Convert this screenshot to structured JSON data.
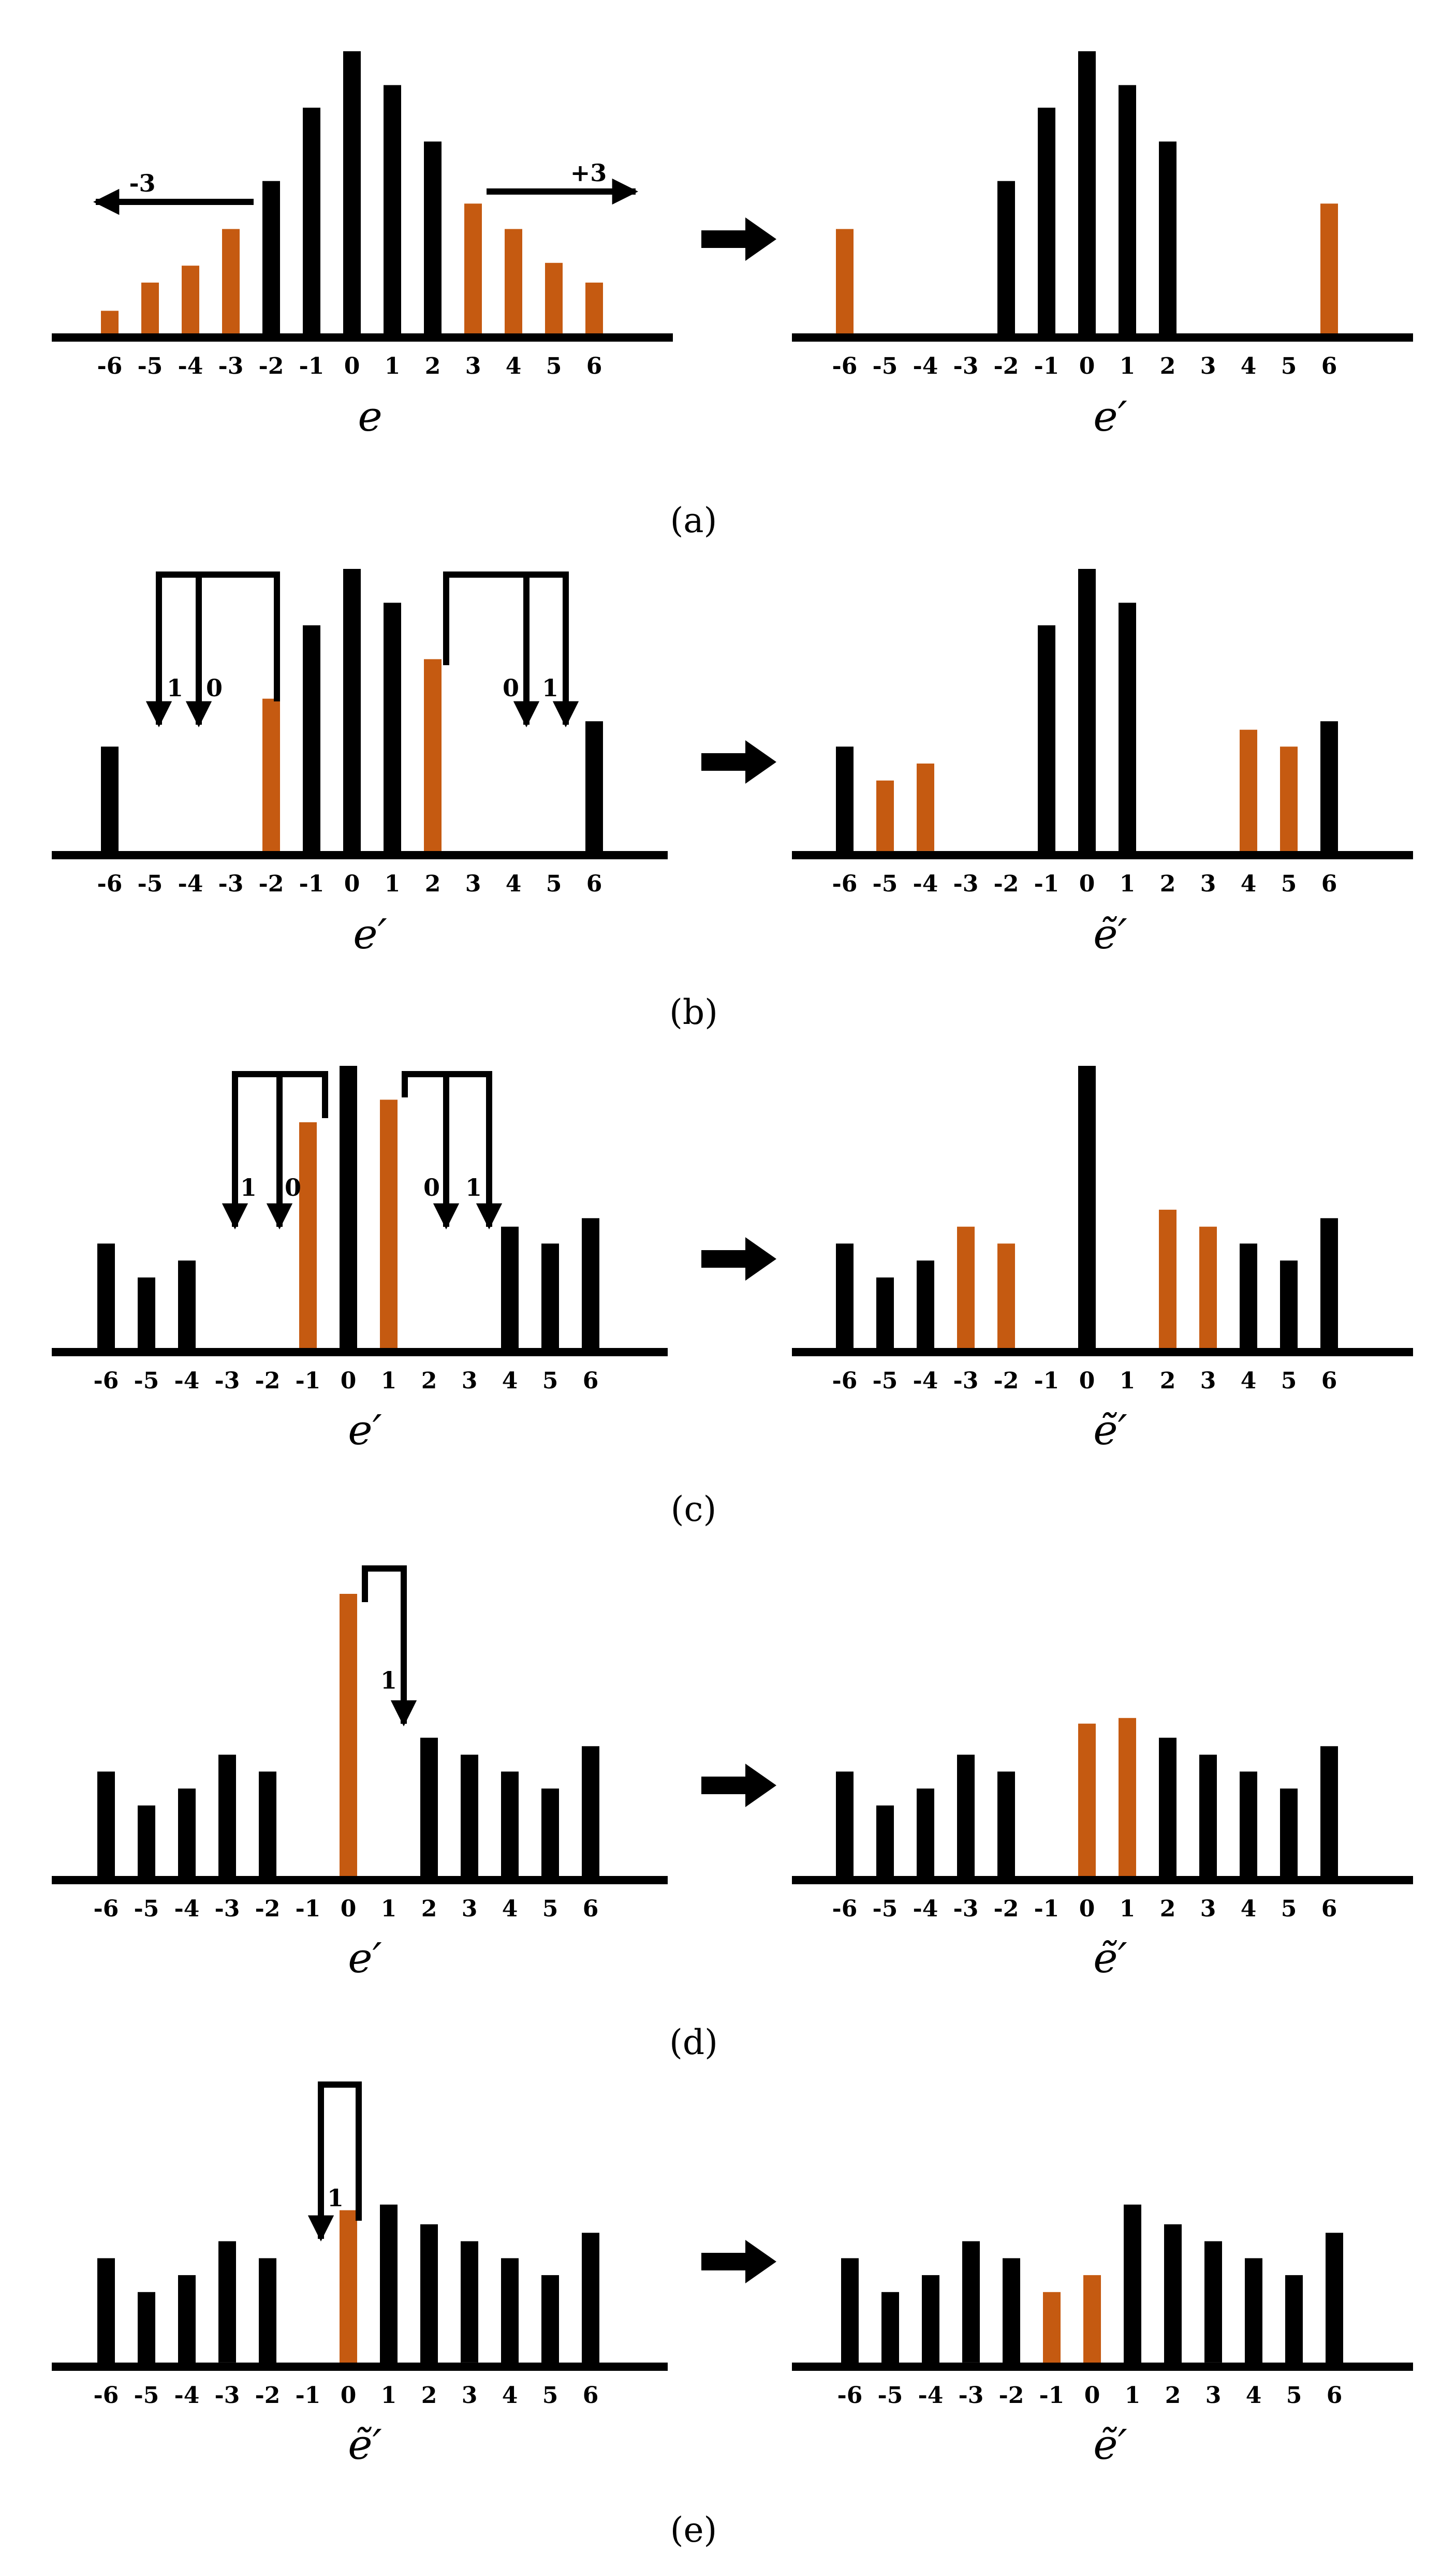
{
  "colors": {
    "normal": "#000000",
    "highlight": "#C55A11"
  },
  "tick_labels": [
    "-6",
    "-5",
    "-4",
    "-3",
    "-2",
    "-1",
    "0",
    "1",
    "2",
    "3",
    "4",
    "5",
    "6"
  ],
  "panels": [
    {
      "id": "a",
      "caption": "(a)",
      "left": {
        "label": "e",
        "bars": [
          {
            "bin": -6,
            "value": 0.08,
            "hl": true
          },
          {
            "bin": -5,
            "value": 0.18,
            "hl": true
          },
          {
            "bin": -4,
            "value": 0.24,
            "hl": true
          },
          {
            "bin": -3,
            "value": 0.37,
            "hl": true
          },
          {
            "bin": -2,
            "value": 0.54,
            "hl": false
          },
          {
            "bin": -1,
            "value": 0.8,
            "hl": false
          },
          {
            "bin": 0,
            "value": 1.0,
            "hl": false
          },
          {
            "bin": 1,
            "value": 0.88,
            "hl": false
          },
          {
            "bin": 2,
            "value": 0.68,
            "hl": false
          },
          {
            "bin": 3,
            "value": 0.46,
            "hl": true
          },
          {
            "bin": 4,
            "value": 0.37,
            "hl": true
          },
          {
            "bin": 5,
            "value": 0.25,
            "hl": true
          },
          {
            "bin": 6,
            "value": 0.18,
            "hl": true
          }
        ],
        "shift_left_label": "-3",
        "shift_right_label": "+3"
      },
      "right": {
        "label": "e′",
        "bars": [
          {
            "bin": -6,
            "value": 0.37,
            "hl": true
          },
          {
            "bin": -2,
            "value": 0.54,
            "hl": false
          },
          {
            "bin": -1,
            "value": 0.8,
            "hl": false
          },
          {
            "bin": 0,
            "value": 1.0,
            "hl": false
          },
          {
            "bin": 1,
            "value": 0.88,
            "hl": false
          },
          {
            "bin": 2,
            "value": 0.68,
            "hl": false
          },
          {
            "bin": 6,
            "value": 0.46,
            "hl": true
          }
        ]
      }
    },
    {
      "id": "b",
      "caption": "(b)",
      "left": {
        "label": "e′",
        "bars": [
          {
            "bin": -6,
            "value": 0.37,
            "hl": false
          },
          {
            "bin": -2,
            "value": 0.54,
            "hl": true
          },
          {
            "bin": -1,
            "value": 0.8,
            "hl": false
          },
          {
            "bin": 0,
            "value": 1.0,
            "hl": false
          },
          {
            "bin": 1,
            "value": 0.88,
            "hl": false
          },
          {
            "bin": 2,
            "value": 0.68,
            "hl": true
          },
          {
            "bin": 6,
            "value": 0.46,
            "hl": false
          }
        ],
        "split_labels": [
          "1",
          "0",
          "0",
          "1"
        ]
      },
      "right": {
        "label": "ẽ′",
        "bars": [
          {
            "bin": -6,
            "value": 0.37,
            "hl": false
          },
          {
            "bin": -5,
            "value": 0.25,
            "hl": true
          },
          {
            "bin": -4,
            "value": 0.31,
            "hl": true
          },
          {
            "bin": -1,
            "value": 0.8,
            "hl": false
          },
          {
            "bin": 0,
            "value": 1.0,
            "hl": false
          },
          {
            "bin": 1,
            "value": 0.88,
            "hl": false
          },
          {
            "bin": 4,
            "value": 0.43,
            "hl": true
          },
          {
            "bin": 5,
            "value": 0.37,
            "hl": true
          },
          {
            "bin": 6,
            "value": 0.46,
            "hl": false
          }
        ]
      }
    },
    {
      "id": "c",
      "caption": "(c)",
      "left": {
        "label": "e′",
        "bars": [
          {
            "bin": -6,
            "value": 0.37,
            "hl": false
          },
          {
            "bin": -5,
            "value": 0.25,
            "hl": false
          },
          {
            "bin": -4,
            "value": 0.31,
            "hl": false
          },
          {
            "bin": -1,
            "value": 0.8,
            "hl": true
          },
          {
            "bin": 0,
            "value": 1.0,
            "hl": false
          },
          {
            "bin": 1,
            "value": 0.88,
            "hl": true
          },
          {
            "bin": 4,
            "value": 0.43,
            "hl": false
          },
          {
            "bin": 5,
            "value": 0.37,
            "hl": false
          },
          {
            "bin": 6,
            "value": 0.46,
            "hl": false
          }
        ],
        "split_labels": [
          "1",
          "0",
          "0",
          "1"
        ]
      },
      "right": {
        "label": "ẽ′",
        "bars": [
          {
            "bin": -6,
            "value": 0.37,
            "hl": false
          },
          {
            "bin": -5,
            "value": 0.25,
            "hl": false
          },
          {
            "bin": -4,
            "value": 0.31,
            "hl": false
          },
          {
            "bin": -3,
            "value": 0.43,
            "hl": true
          },
          {
            "bin": -2,
            "value": 0.37,
            "hl": true
          },
          {
            "bin": 0,
            "value": 1.0,
            "hl": false
          },
          {
            "bin": 2,
            "value": 0.49,
            "hl": true
          },
          {
            "bin": 3,
            "value": 0.43,
            "hl": true
          },
          {
            "bin": 4,
            "value": 0.37,
            "hl": false
          },
          {
            "bin": 5,
            "value": 0.31,
            "hl": false
          },
          {
            "bin": 6,
            "value": 0.46,
            "hl": false
          }
        ]
      }
    },
    {
      "id": "d",
      "caption": "(d)",
      "left": {
        "label": "e′",
        "bars": [
          {
            "bin": -6,
            "value": 0.37,
            "hl": false
          },
          {
            "bin": -5,
            "value": 0.25,
            "hl": false
          },
          {
            "bin": -4,
            "value": 0.31,
            "hl": false
          },
          {
            "bin": -3,
            "value": 0.43,
            "hl": false
          },
          {
            "bin": -2,
            "value": 0.37,
            "hl": false
          },
          {
            "bin": 0,
            "value": 1.0,
            "hl": true
          },
          {
            "bin": 2,
            "value": 0.49,
            "hl": false
          },
          {
            "bin": 3,
            "value": 0.43,
            "hl": false
          },
          {
            "bin": 4,
            "value": 0.37,
            "hl": false
          },
          {
            "bin": 5,
            "value": 0.31,
            "hl": false
          },
          {
            "bin": 6,
            "value": 0.46,
            "hl": false
          }
        ],
        "split_labels": [
          "1"
        ]
      },
      "right": {
        "label": "ẽ′",
        "bars": [
          {
            "bin": -6,
            "value": 0.37,
            "hl": false
          },
          {
            "bin": -5,
            "value": 0.25,
            "hl": false
          },
          {
            "bin": -4,
            "value": 0.31,
            "hl": false
          },
          {
            "bin": -3,
            "value": 0.43,
            "hl": false
          },
          {
            "bin": -2,
            "value": 0.37,
            "hl": false
          },
          {
            "bin": 0,
            "value": 0.54,
            "hl": true
          },
          {
            "bin": 1,
            "value": 0.56,
            "hl": true
          },
          {
            "bin": 2,
            "value": 0.49,
            "hl": false
          },
          {
            "bin": 3,
            "value": 0.43,
            "hl": false
          },
          {
            "bin": 4,
            "value": 0.37,
            "hl": false
          },
          {
            "bin": 5,
            "value": 0.31,
            "hl": false
          },
          {
            "bin": 6,
            "value": 0.46,
            "hl": false
          }
        ]
      }
    },
    {
      "id": "e",
      "caption": "(e)",
      "left": {
        "label": "ẽ′",
        "bars": [
          {
            "bin": -6,
            "value": 0.37,
            "hl": false
          },
          {
            "bin": -5,
            "value": 0.25,
            "hl": false
          },
          {
            "bin": -4,
            "value": 0.31,
            "hl": false
          },
          {
            "bin": -3,
            "value": 0.43,
            "hl": false
          },
          {
            "bin": -2,
            "value": 0.37,
            "hl": false
          },
          {
            "bin": 0,
            "value": 0.54,
            "hl": true
          },
          {
            "bin": 1,
            "value": 0.56,
            "hl": false
          },
          {
            "bin": 2,
            "value": 0.49,
            "hl": false
          },
          {
            "bin": 3,
            "value": 0.43,
            "hl": false
          },
          {
            "bin": 4,
            "value": 0.37,
            "hl": false
          },
          {
            "bin": 5,
            "value": 0.31,
            "hl": false
          },
          {
            "bin": 6,
            "value": 0.46,
            "hl": false
          }
        ],
        "split_labels": [
          "1"
        ]
      },
      "right": {
        "label": "ẽ′",
        "bars": [
          {
            "bin": -6,
            "value": 0.37,
            "hl": false
          },
          {
            "bin": -5,
            "value": 0.25,
            "hl": false
          },
          {
            "bin": -4,
            "value": 0.31,
            "hl": false
          },
          {
            "bin": -3,
            "value": 0.43,
            "hl": false
          },
          {
            "bin": -2,
            "value": 0.37,
            "hl": false
          },
          {
            "bin": -1,
            "value": 0.25,
            "hl": true
          },
          {
            "bin": 0,
            "value": 0.31,
            "hl": true
          },
          {
            "bin": 1,
            "value": 0.56,
            "hl": false
          },
          {
            "bin": 2,
            "value": 0.49,
            "hl": false
          },
          {
            "bin": 3,
            "value": 0.43,
            "hl": false
          },
          {
            "bin": 4,
            "value": 0.37,
            "hl": false
          },
          {
            "bin": 5,
            "value": 0.31,
            "hl": false
          },
          {
            "bin": 6,
            "value": 0.46,
            "hl": false
          }
        ]
      }
    }
  ]
}
